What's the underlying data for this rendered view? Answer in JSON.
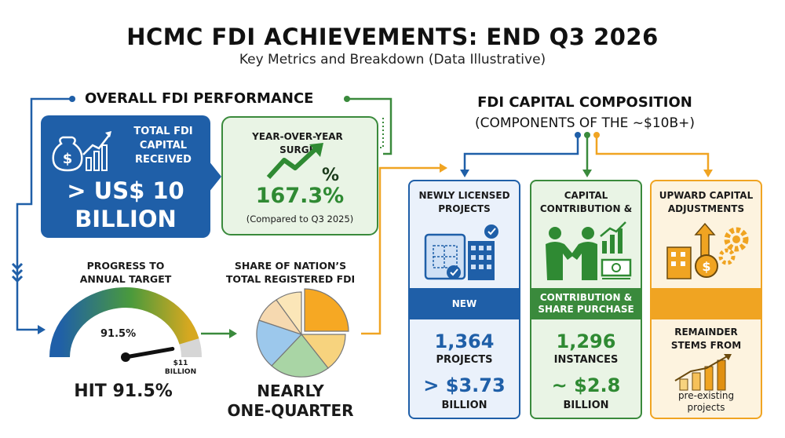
{
  "header": {
    "title": "HCMC FDI ACHIEVEMENTS: END Q3 2026",
    "subtitle": "Key Metrics and Breakdown (Data Illustrative)"
  },
  "overall": {
    "heading": "OVERALL FDI PERFORMANCE",
    "total_card": {
      "label_line1": "TOTAL FDI",
      "label_line2": "CAPITAL",
      "label_line3": "RECEIVED",
      "value_line1": "> US$ 10",
      "value_line2": "BILLION",
      "icon": "money-bag-growth-icon"
    },
    "yoy_card": {
      "label_line1": "YEAR-OVER-YEAR",
      "label_line2": "SURGE",
      "value": "167.3%",
      "comparison": "(Compared to Q3 2025)",
      "icon": "trend-arrow-percent-icon"
    },
    "progress": {
      "label_line1": "PROGRESS TO",
      "label_line2": "ANNUAL TARGET",
      "gauge_value": "91.5%",
      "gauge_fraction": 0.915,
      "target_line1": "$11",
      "target_line2": "BILLION",
      "result": "HIT 91.5%"
    },
    "share": {
      "label_line1": "SHARE OF NATION’S",
      "label_line2": "TOTAL REGISTERED FDI",
      "result_line1": "NEARLY",
      "result_line2": "ONE-QUARTER"
    }
  },
  "composition": {
    "heading_line1": "FDI CAPITAL COMPOSITION",
    "heading_line2": "(COMPONENTS OF THE ~$10B+)",
    "columns": [
      {
        "head_line1": "NEWLY LICENSED",
        "head_line2": "PROJECTS",
        "band": "NEW",
        "count": "1,364",
        "count_unit": "PROJECTS",
        "amount": "> $3.73",
        "amount_unit": "BILLION",
        "icon": "blueprint-building-icon"
      },
      {
        "head_line1": "CAPITAL",
        "head_line2": "CONTRIBUTION &",
        "band_line1": "CONTRIBUTION &",
        "band_line2": "SHARE PURCHASE",
        "count": "1,296",
        "count_unit": "INSTANCES",
        "amount": "~ $2.8",
        "amount_unit": "BILLION",
        "icon": "handshake-money-icon"
      },
      {
        "head_line1": "UPWARD CAPITAL",
        "head_line2": "ADJUSTMENTS",
        "note_line1": "REMAINDER",
        "note_line2": "STEMS FROM",
        "footer_line1": "pre-existing",
        "footer_line2": "projects",
        "icon": "building-gear-growth-icon"
      }
    ]
  },
  "colors": {
    "blue": "#1f5fa8",
    "green": "#3a8a3c",
    "orange": "#f0a422"
  }
}
